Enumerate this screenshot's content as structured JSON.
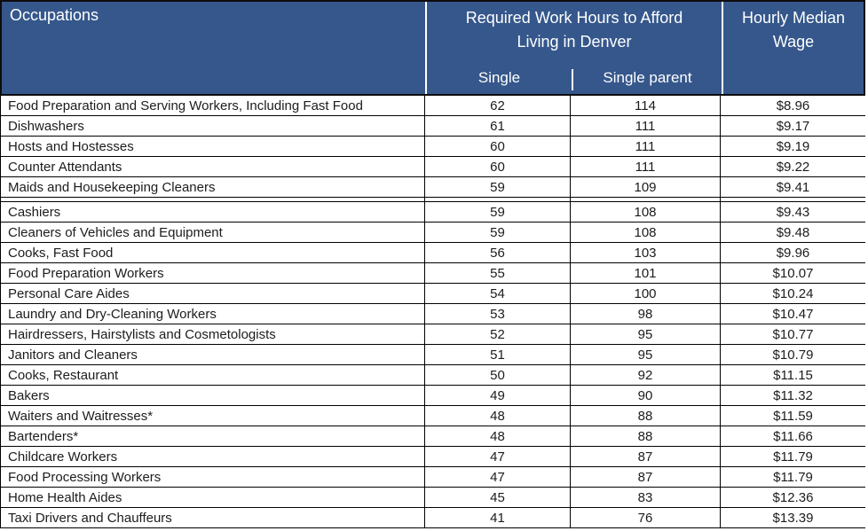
{
  "colors": {
    "header_bg": "#35578B",
    "header_text": "#FFFFFF",
    "row_text": "#1C1C1C",
    "grid_line": "#000000"
  },
  "header": {
    "occupations": "Occupations",
    "hours_group_line1": "Required Work Hours to Afford",
    "hours_group_line2": "Living in Denver",
    "single": "Single",
    "single_parent": "Single parent",
    "wage_line1": "Hourly Median",
    "wage_line2": "Wage"
  },
  "table": {
    "columns": [
      "Occupations",
      "Single",
      "Single parent",
      "Hourly Median Wage"
    ],
    "gap_after_index": 4,
    "rows": [
      {
        "occupation": "Food Preparation and Serving Workers, Including Fast Food",
        "single": "62",
        "single_parent": "114",
        "wage": "$8.96"
      },
      {
        "occupation": "Dishwashers",
        "single": "61",
        "single_parent": "111",
        "wage": "$9.17"
      },
      {
        "occupation": "Hosts and Hostesses",
        "single": "60",
        "single_parent": "111",
        "wage": "$9.19"
      },
      {
        "occupation": "Counter Attendants",
        "single": "60",
        "single_parent": "111",
        "wage": "$9.22"
      },
      {
        "occupation": "Maids and Housekeeping Cleaners",
        "single": "59",
        "single_parent": "109",
        "wage": "$9.41"
      },
      {
        "occupation": "Cashiers",
        "single": "59",
        "single_parent": "108",
        "wage": "$9.43"
      },
      {
        "occupation": "Cleaners of Vehicles and Equipment",
        "single": "59",
        "single_parent": "108",
        "wage": "$9.48"
      },
      {
        "occupation": "Cooks, Fast Food",
        "single": "56",
        "single_parent": "103",
        "wage": "$9.96"
      },
      {
        "occupation": "Food Preparation Workers",
        "single": "55",
        "single_parent": "101",
        "wage": "$10.07"
      },
      {
        "occupation": "Personal Care Aides",
        "single": "54",
        "single_parent": "100",
        "wage": "$10.24"
      },
      {
        "occupation": "Laundry and Dry-Cleaning Workers",
        "single": "53",
        "single_parent": "98",
        "wage": "$10.47"
      },
      {
        "occupation": "Hairdressers, Hairstylists and Cosmetologists",
        "single": "52",
        "single_parent": "95",
        "wage": "$10.77"
      },
      {
        "occupation": "Janitors and Cleaners",
        "single": "51",
        "single_parent": "95",
        "wage": "$10.79"
      },
      {
        "occupation": "Cooks, Restaurant",
        "single": "50",
        "single_parent": "92",
        "wage": "$11.15"
      },
      {
        "occupation": "Bakers",
        "single": "49",
        "single_parent": "90",
        "wage": "$11.32"
      },
      {
        "occupation": "Waiters and Waitresses*",
        "single": "48",
        "single_parent": "88",
        "wage": "$11.59"
      },
      {
        "occupation": "Bartenders*",
        "single": "48",
        "single_parent": "88",
        "wage": "$11.66"
      },
      {
        "occupation": "Childcare Workers",
        "single": "47",
        "single_parent": "87",
        "wage": "$11.79"
      },
      {
        "occupation": "Food Processing Workers",
        "single": "47",
        "single_parent": "87",
        "wage": "$11.79"
      },
      {
        "occupation": "Home Health Aides",
        "single": "45",
        "single_parent": "83",
        "wage": "$12.36"
      },
      {
        "occupation": "Taxi Drivers and Chauffeurs",
        "single": "41",
        "single_parent": "76",
        "wage": "$13.39"
      }
    ]
  }
}
